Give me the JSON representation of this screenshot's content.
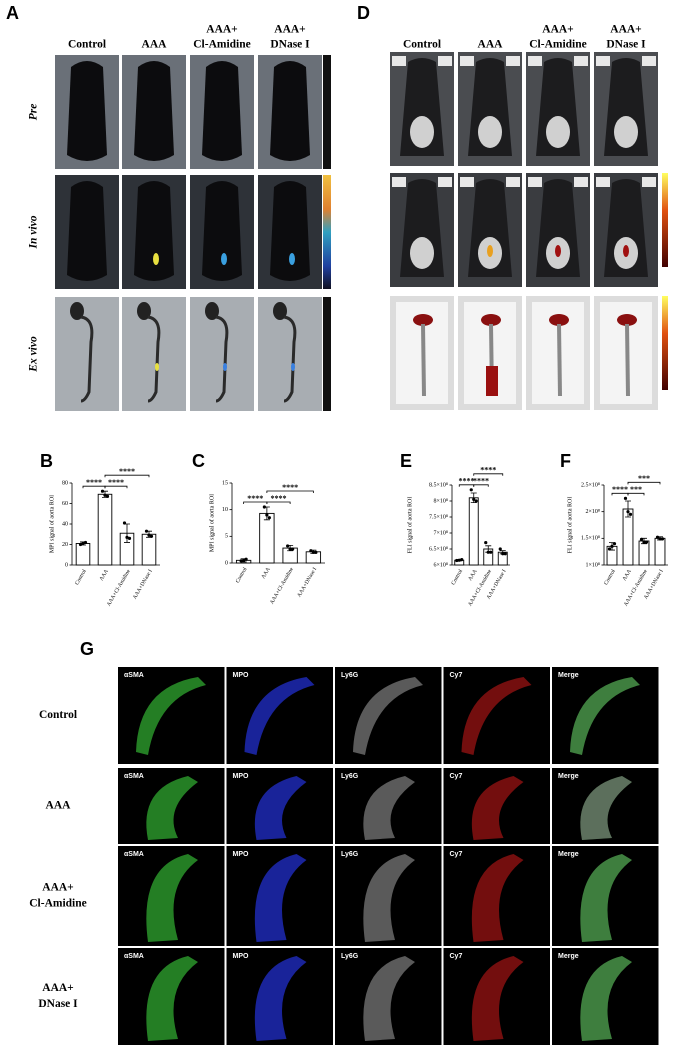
{
  "panel_a": {
    "label": "A",
    "columns": [
      [
        "Control"
      ],
      [
        "AAA"
      ],
      [
        "AAA+",
        "Cl-Amidine"
      ],
      [
        "AAA+",
        "DNase I"
      ]
    ],
    "rows": [
      "Pre",
      "In vivo",
      "Ex vivo"
    ]
  },
  "panel_d": {
    "label": "D",
    "columns": [
      [
        "Control"
      ],
      [
        "AAA"
      ],
      [
        "AAA+",
        "Cl-Amidine"
      ],
      [
        "AAA+",
        "DNase I"
      ]
    ]
  },
  "panel_g": {
    "label": "G",
    "channels": [
      "αSMA",
      "MPO",
      "Ly6G",
      "Cy7",
      "Merge"
    ],
    "rows": [
      [
        "Control"
      ],
      [
        "AAA"
      ],
      [
        "AAA+",
        "Cl-Amidine"
      ],
      [
        "AAA+",
        "DNase I"
      ]
    ]
  },
  "chart_data": [
    {
      "type": "bar",
      "panel": "B",
      "y_label": "MPI signal of aorta ROI",
      "categories": [
        "Control",
        "AAA",
        "AAA+Cl-Amidine",
        "AAA+DNase I"
      ],
      "values": [
        21,
        69,
        31,
        30
      ],
      "errors": [
        1.5,
        3,
        9,
        3
      ],
      "points": [
        [
          20,
          21,
          22
        ],
        [
          72,
          68,
          67
        ],
        [
          41,
          27,
          26
        ],
        [
          33,
          29,
          28
        ]
      ],
      "color": "#ffffff",
      "ylim": [
        0,
        80
      ],
      "yticks": [
        0,
        20,
        40,
        60,
        80
      ],
      "significance": {
        "pairs": [
          [
            0,
            1
          ],
          [
            1,
            2
          ],
          [
            1,
            3
          ]
        ],
        "labels": [
          "****",
          "****",
          "****"
        ]
      }
    },
    {
      "type": "bar",
      "panel": "C",
      "y_label": "MPI signal of aorta ROI",
      "categories": [
        "Control",
        "AAA",
        "AAA+Cl-Amidine",
        "AAA+DNase I"
      ],
      "values": [
        0.5,
        9.3,
        2.8,
        2.1
      ],
      "errors": [
        0.3,
        1.2,
        0.5,
        0.3
      ],
      "points": [
        [
          0.4,
          0.5,
          0.7
        ],
        [
          10.5,
          9,
          8.5
        ],
        [
          3.2,
          2.6,
          2.6
        ],
        [
          2.3,
          2.0,
          2.0
        ]
      ],
      "color": "#ffffff",
      "ylim": [
        0,
        15
      ],
      "yticks": [
        0,
        5,
        10,
        15
      ],
      "significance": {
        "pairs": [
          [
            0,
            1
          ],
          [
            1,
            2
          ],
          [
            1,
            3
          ]
        ],
        "labels": [
          "****",
          "****",
          "****"
        ]
      }
    },
    {
      "type": "bar",
      "panel": "E",
      "y_label": "FLI signal of aorta ROI",
      "categories": [
        "Control",
        "AAA",
        "AAA+Cl-Amidine",
        "AAA+DNase I"
      ],
      "values": [
        615000000,
        810000000,
        650000000,
        640000000
      ],
      "errors": [
        2000000,
        15000000,
        10000000,
        5000000
      ],
      "points": [
        [
          614000000,
          615000000,
          617000000
        ],
        [
          835000000,
          805000000,
          800000000
        ],
        [
          670000000,
          640000000,
          640000000
        ],
        [
          650000000,
          635000000,
          635000000
        ]
      ],
      "color": "#ffffff",
      "ylim": [
        600000000,
        850000000
      ],
      "yticks": [
        {
          "value": 600000000,
          "label": "6×10⁸"
        },
        {
          "value": 650000000,
          "label": "6.5×10⁸"
        },
        {
          "value": 700000000,
          "label": "7×10⁸"
        },
        {
          "value": 750000000,
          "label": "7.5×10⁸"
        },
        {
          "value": 800000000,
          "label": "8×10⁸"
        },
        {
          "value": 850000000,
          "label": "8.5×10⁸"
        }
      ],
      "significance": {
        "pairs": [
          [
            0,
            1
          ],
          [
            1,
            2
          ],
          [
            1,
            3
          ]
        ],
        "labels": [
          "****",
          "****",
          "****"
        ]
      }
    },
    {
      "type": "bar",
      "panel": "F",
      "y_label": "FLI signal of aorta ROI",
      "categories": [
        "Control",
        "AAA",
        "AAA+Cl-Amidine",
        "AAA+DNase I"
      ],
      "values": [
        135000000,
        205000000,
        145000000,
        150000000
      ],
      "errors": [
        7000000,
        15000000,
        5000000,
        3000000
      ],
      "points": [
        [
          130000000,
          135000000,
          140000000
        ],
        [
          225000000,
          200000000,
          195000000
        ],
        [
          148000000,
          143000000,
          143000000
        ],
        [
          152000000,
          149000000,
          149000000
        ]
      ],
      "color": "#ffffff",
      "ylim": [
        100000000,
        250000000
      ],
      "yticks": [
        {
          "value": 100000000,
          "label": "1×10⁸"
        },
        {
          "value": 150000000,
          "label": "1.5×10⁸"
        },
        {
          "value": 200000000,
          "label": "2×10⁸"
        },
        {
          "value": 250000000,
          "label": "2.5×10⁸"
        }
      ],
      "significance": {
        "pairs": [
          [
            0,
            1
          ],
          [
            1,
            2
          ],
          [
            1,
            3
          ]
        ],
        "labels": [
          "****",
          "***",
          "***"
        ]
      }
    }
  ]
}
